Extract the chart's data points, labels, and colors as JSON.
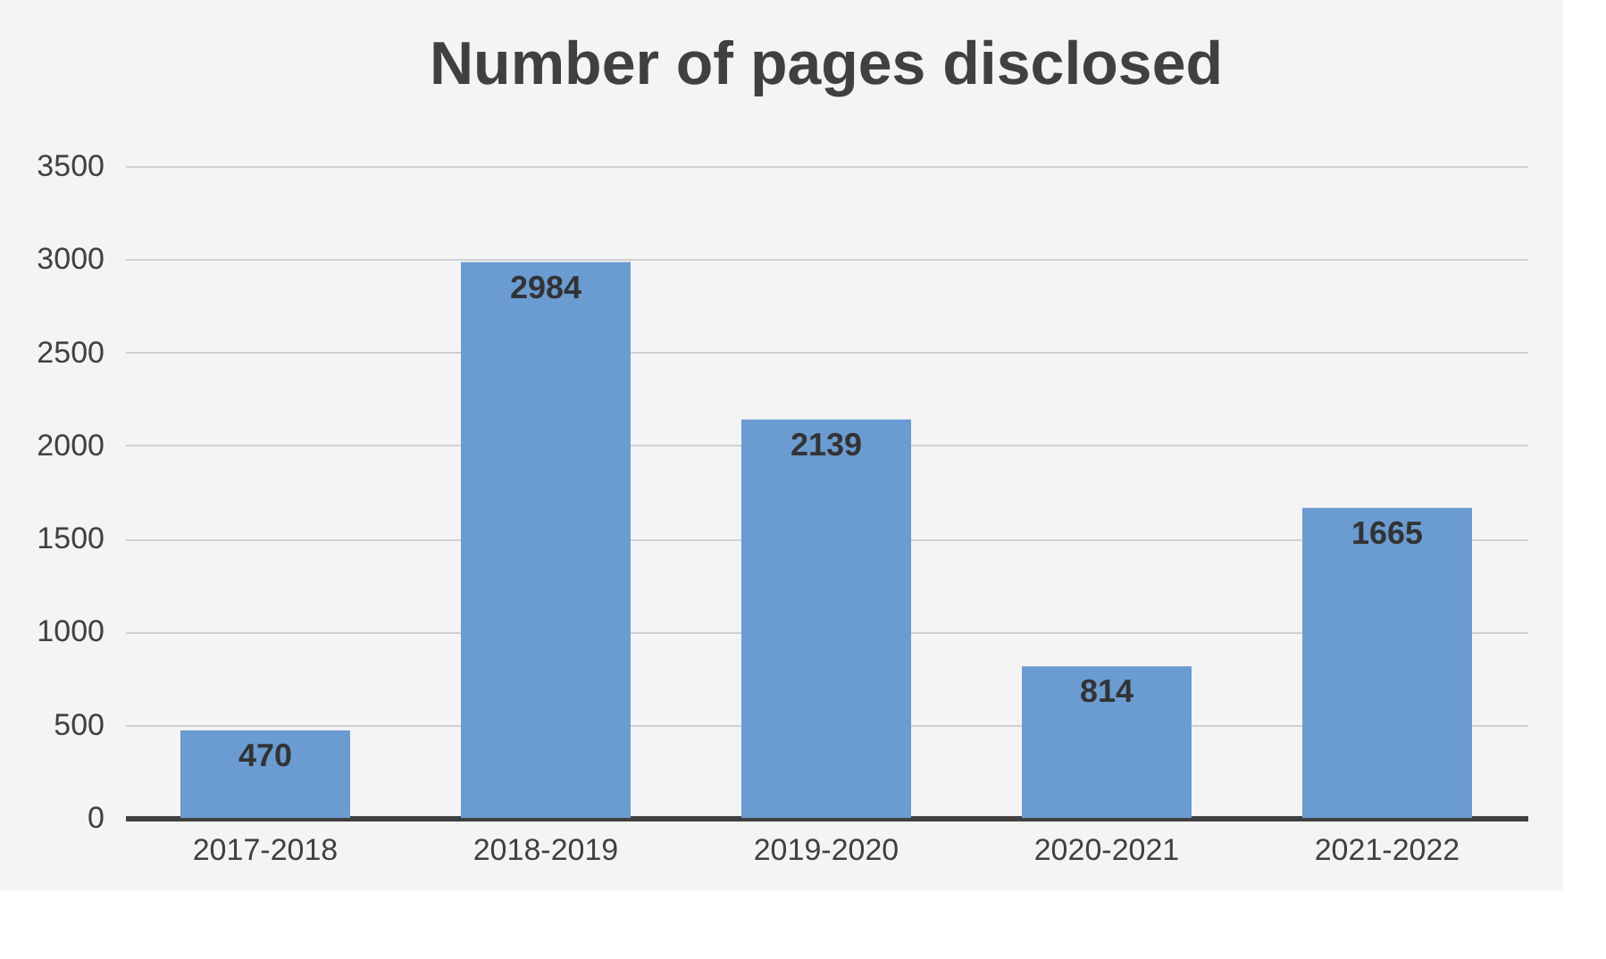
{
  "chart_data": {
    "type": "bar",
    "title": "Number of pages disclosed",
    "categories": [
      "2017-2018",
      "2018-2019",
      "2019-2020",
      "2020-2021",
      "2021-2022"
    ],
    "values": [
      470,
      2984,
      2139,
      814,
      1665
    ],
    "color": "#6a9bd1",
    "ylim": [
      0,
      3500
    ],
    "yticks": [
      0,
      500,
      1000,
      1500,
      2000,
      2500,
      3000,
      3500
    ],
    "grid": "y",
    "data_labels": true
  }
}
